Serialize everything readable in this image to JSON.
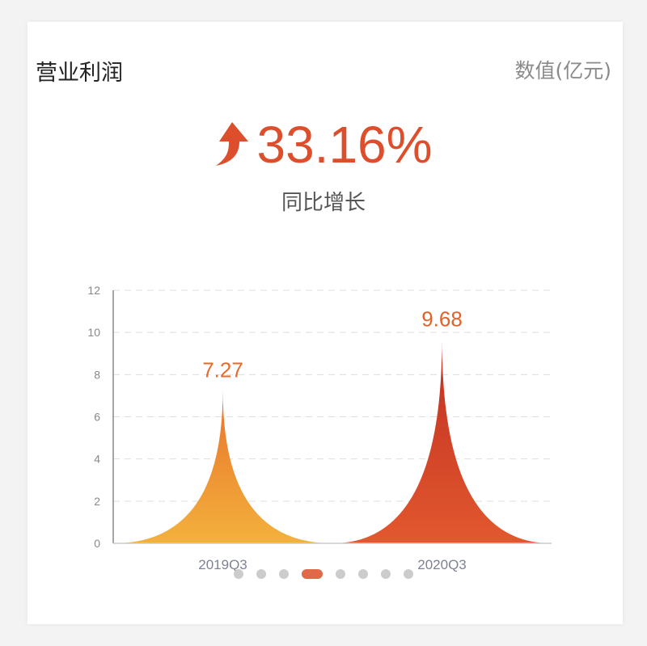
{
  "header": {
    "title": "营业利润",
    "unit": "数值(亿元)"
  },
  "summary": {
    "growth": "33.16%",
    "label": "同比增长",
    "icon": "arrow-up-curved-icon",
    "color": "#dd4f2c"
  },
  "chart_data": {
    "type": "area",
    "categories": [
      "2019Q3",
      "2020Q3"
    ],
    "values": [
      7.27,
      9.68
    ],
    "data_labels": [
      "7.27",
      "9.68"
    ],
    "ylim": [
      0,
      12
    ],
    "yticks": [
      0,
      2,
      4,
      6,
      8,
      10,
      12
    ],
    "grid": true,
    "colors": [
      [
        "#e8712b",
        "#f3b13c"
      ],
      [
        "#bf2f22",
        "#e2582e"
      ]
    ]
  },
  "pager": {
    "count": 8,
    "active": 3
  }
}
